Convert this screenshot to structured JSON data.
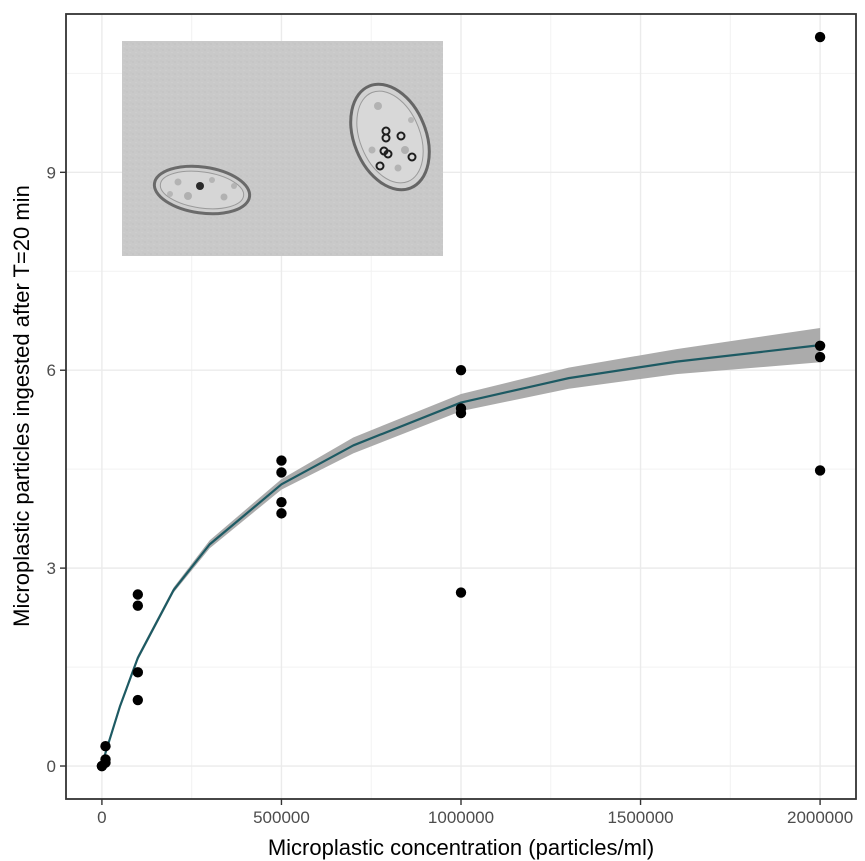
{
  "chart_data": {
    "type": "scatter",
    "xlabel": "Microplastic concentration (particles/ml)",
    "ylabel": "Microplastic particles ingested after T=20 min",
    "xlim": [
      -100000,
      2100000
    ],
    "ylim": [
      -0.5,
      11.4
    ],
    "x_ticks": [
      0,
      500000,
      1000000,
      1500000,
      2000000
    ],
    "x_tick_labels": [
      "0",
      "500000",
      "1000000",
      "1500000",
      "2000000"
    ],
    "y_ticks": [
      0,
      3,
      6,
      9
    ],
    "y_tick_labels": [
      "0",
      "3",
      "6",
      "9"
    ],
    "grid": true,
    "series": [
      {
        "kind": "points",
        "color": "#000000",
        "points": [
          {
            "x": 0,
            "y": 0.0
          },
          {
            "x": 0,
            "y": 0.0
          },
          {
            "x": 10000,
            "y": 0.05
          },
          {
            "x": 10000,
            "y": 0.1
          },
          {
            "x": 10000,
            "y": 0.3
          },
          {
            "x": 100000,
            "y": 2.6
          },
          {
            "x": 100000,
            "y": 2.43
          },
          {
            "x": 100000,
            "y": 1.42
          },
          {
            "x": 100000,
            "y": 1.0
          },
          {
            "x": 500000,
            "y": 4.63
          },
          {
            "x": 500000,
            "y": 4.45
          },
          {
            "x": 500000,
            "y": 4.0
          },
          {
            "x": 500000,
            "y": 3.83
          },
          {
            "x": 1000000,
            "y": 6.0
          },
          {
            "x": 1000000,
            "y": 5.42
          },
          {
            "x": 1000000,
            "y": 5.35
          },
          {
            "x": 1000000,
            "y": 2.63
          },
          {
            "x": 2000000,
            "y": 11.05
          },
          {
            "x": 2000000,
            "y": 6.37
          },
          {
            "x": 2000000,
            "y": 6.2
          },
          {
            "x": 2000000,
            "y": 4.48
          }
        ]
      },
      {
        "kind": "fit",
        "model": "saturating",
        "color": "#1d5a63",
        "band_color": "#a6a6a6",
        "curve": [
          {
            "x": 0,
            "y": 0.0
          },
          {
            "x": 10000,
            "y": 0.2
          },
          {
            "x": 50000,
            "y": 0.9
          },
          {
            "x": 100000,
            "y": 1.64
          },
          {
            "x": 200000,
            "y": 2.67
          },
          {
            "x": 300000,
            "y": 3.36
          },
          {
            "x": 500000,
            "y": 4.27
          },
          {
            "x": 700000,
            "y": 4.86
          },
          {
            "x": 1000000,
            "y": 5.51
          },
          {
            "x": 1300000,
            "y": 5.88
          },
          {
            "x": 1600000,
            "y": 6.13
          },
          {
            "x": 2000000,
            "y": 6.38
          }
        ],
        "band_upper": [
          {
            "x": 0,
            "y": 0.05
          },
          {
            "x": 10000,
            "y": 0.23
          },
          {
            "x": 50000,
            "y": 0.94
          },
          {
            "x": 100000,
            "y": 1.68
          },
          {
            "x": 200000,
            "y": 2.71
          },
          {
            "x": 300000,
            "y": 3.42
          },
          {
            "x": 500000,
            "y": 4.35
          },
          {
            "x": 700000,
            "y": 4.98
          },
          {
            "x": 1000000,
            "y": 5.64
          },
          {
            "x": 1300000,
            "y": 6.04
          },
          {
            "x": 1600000,
            "y": 6.32
          },
          {
            "x": 2000000,
            "y": 6.64
          }
        ],
        "band_lower": [
          {
            "x": 0,
            "y": 0.0
          },
          {
            "x": 10000,
            "y": 0.17
          },
          {
            "x": 50000,
            "y": 0.86
          },
          {
            "x": 100000,
            "y": 1.6
          },
          {
            "x": 200000,
            "y": 2.63
          },
          {
            "x": 300000,
            "y": 3.3
          },
          {
            "x": 500000,
            "y": 4.19
          },
          {
            "x": 700000,
            "y": 4.74
          },
          {
            "x": 1000000,
            "y": 5.38
          },
          {
            "x": 1300000,
            "y": 5.72
          },
          {
            "x": 1600000,
            "y": 5.94
          },
          {
            "x": 2000000,
            "y": 6.12
          }
        ]
      }
    ],
    "inset_image": {
      "subject": "micrograph of two ciliate cells containing ingested microplastic beads",
      "background_color": "#c9c9c9"
    }
  }
}
